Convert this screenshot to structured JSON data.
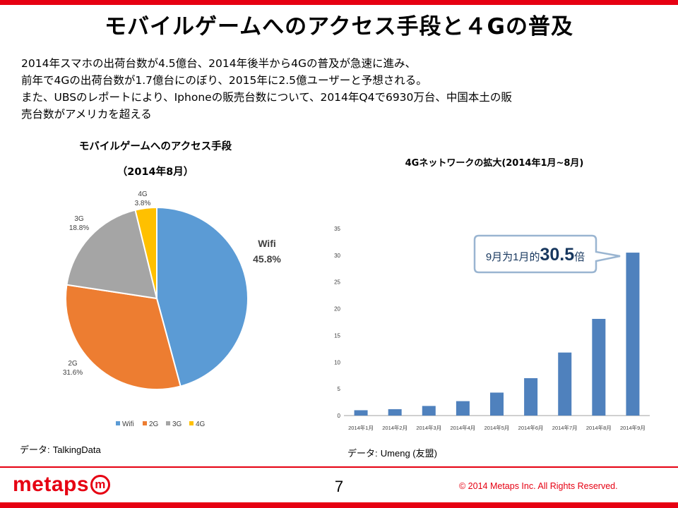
{
  "slide": {
    "title": "モバイルゲームへのアクセス手段と４Gの普及",
    "intro_lines": [
      "2014年スマホの出荷台数が4.5億台、2014年後半から4Gの普及が急速に進み、",
      "前年で4Gの出荷台数が1.7億台にのぼり、2015年に2.5億ユーザーと予想される。",
      "また、UBSのレポートにより、Iphoneの販売台数について、2014年Q4で6930万台、中国本土の販",
      "売台数がアメリカを超える"
    ],
    "page_number": "7",
    "copyright": "© 2014  Metaps Inc. All Rights Reserved.",
    "logo": {
      "text": "metaps",
      "mark": "m"
    },
    "colors": {
      "brand": "#e60012"
    }
  },
  "pie_source": {
    "label": "データ:",
    "name": "TalkingData"
  },
  "bar_source": {
    "label": "データ:",
    "name": "Umeng (友盟)"
  },
  "chart_data": [
    {
      "type": "pie",
      "title": "モバイルゲームへのアクセス手段",
      "subtitle": "（2014年8月）",
      "slices": [
        {
          "name": "Wifi",
          "value": 45.8,
          "label": "45.8%",
          "color": "#5b9bd5"
        },
        {
          "name": "2G",
          "value": 31.6,
          "label": "31.6%",
          "color": "#ed7d31"
        },
        {
          "name": "3G",
          "value": 18.8,
          "label": "18.8%",
          "color": "#a5a5a5"
        },
        {
          "name": "4G",
          "value": 3.8,
          "label": "3.8%",
          "color": "#ffc000"
        }
      ],
      "legend": "bottom"
    },
    {
      "type": "bar",
      "title": "4Gネットワークの拡大(2014年1月~8月)",
      "categories": [
        "2014年1月",
        "2014年2月",
        "2014年3月",
        "2014年4月",
        "2014年5月",
        "2014年6月",
        "2014年7月",
        "2014年8月",
        "2014年9月"
      ],
      "values": [
        1.0,
        1.2,
        1.8,
        2.7,
        4.3,
        7.0,
        11.8,
        18.1,
        30.5
      ],
      "ylim": [
        0,
        35
      ],
      "yticks": [
        0,
        5,
        10,
        15,
        20,
        25,
        30,
        35
      ],
      "color": "#4f81bd",
      "callout": {
        "prefix": "9月为1月的",
        "value": "30.5",
        "suffix": "倍"
      }
    }
  ]
}
